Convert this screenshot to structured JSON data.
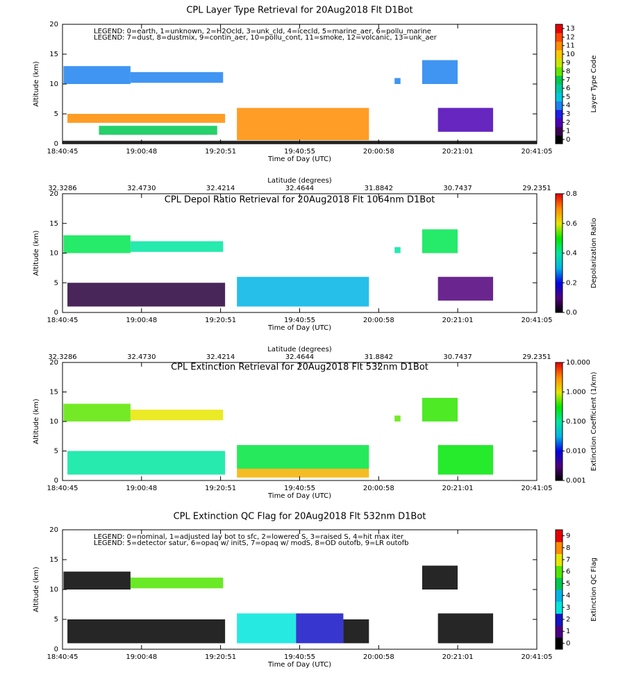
{
  "chart_data": [
    {
      "type": "curtain",
      "title": "CPL Layer Type Retrieval for 20Aug2018 Flt D1Bot",
      "xlabel": "Time of Day (UTC)",
      "ylabel": "Altitude (km)",
      "zlabel": "Layer Type Code",
      "legend_lines": [
        "LEGEND: 0=earth, 1=unknown, 2=H2Ocld, 3=unk_cld, 4=icecld, 5=marine_aer, 6=pollu_marine",
        "LEGEND: 7=dust, 8=dustmix, 9=contin_aer, 10=pollu_cont, 11=smoke, 12=volcanic, 13=unk_aer"
      ],
      "xlim": [
        "18:40:45",
        "20:41:05"
      ],
      "xticks": [
        "18:40:45",
        "19:00:48",
        "19:20:51",
        "19:40:55",
        "20:00:58",
        "20:21:01",
        "20:41:05"
      ],
      "ylim": [
        0,
        20
      ],
      "yticks": [
        0,
        5,
        10,
        15,
        20
      ],
      "zlim": [
        0,
        13
      ],
      "zticks": [
        0,
        1,
        2,
        3,
        4,
        5,
        6,
        7,
        8,
        9,
        10,
        11,
        12,
        13
      ],
      "discrete": true,
      "colors": [
        "#000000",
        "#3c0050",
        "#4b00b4",
        "#1e1ee6",
        "#1e82f0",
        "#00c8dc",
        "#00c8a0",
        "#00c850",
        "#64e600",
        "#c8e600",
        "#ffc800",
        "#ff8c00",
        "#ff4600",
        "#e60000"
      ],
      "layers": [
        {
          "start": "18:41:00",
          "end": "18:58:00",
          "bottom": 10,
          "top": 13,
          "value": 4
        },
        {
          "start": "18:58:00",
          "end": "19:21:30",
          "bottom": 10.2,
          "top": 12,
          "value": 4
        },
        {
          "start": "18:42:00",
          "end": "19:22:00",
          "bottom": 3.5,
          "top": 5,
          "value": 11
        },
        {
          "start": "18:50:00",
          "end": "19:20:00",
          "bottom": 1.5,
          "top": 3,
          "value": 7
        },
        {
          "start": "19:25:00",
          "end": "19:58:30",
          "bottom": 0.6,
          "top": 6,
          "value": 11
        },
        {
          "start": "20:05:00",
          "end": "20:06:30",
          "bottom": 10,
          "top": 11,
          "value": 4
        },
        {
          "start": "20:12:00",
          "end": "20:21:00",
          "bottom": 10,
          "top": 14,
          "value": 4
        },
        {
          "start": "20:16:00",
          "end": "20:30:00",
          "bottom": 2,
          "top": 6,
          "value": 2
        },
        {
          "start": "18:40:45",
          "end": "20:41:05",
          "bottom": 0,
          "top": 0.5,
          "value": 0
        }
      ]
    },
    {
      "type": "curtain",
      "title": "CPL Depol Ratio Retrieval for 20Aug2018 Flt 1064nm D1Bot",
      "xlabel": "Time of Day (UTC)",
      "ylabel": "Altitude (km)",
      "zlabel": "Depolarization Ratio",
      "x2label": "Latitude (degrees)",
      "x2ticks": [
        32.3286,
        {
          "value": 32.473,
          "label": "32.4730"
        },
        32.4214,
        32.4644,
        31.8842,
        30.7437,
        29.2351
      ],
      "xlim": [
        "18:40:45",
        "20:41:05"
      ],
      "xticks": [
        "18:40:45",
        "19:00:48",
        "19:20:51",
        "19:40:55",
        "20:00:58",
        "20:21:01",
        "20:41:05"
      ],
      "ylim": [
        0,
        20
      ],
      "yticks": [
        0,
        5,
        10,
        15,
        20
      ],
      "zlim": [
        0,
        0.8
      ],
      "zticks": [
        {
          "value": 0,
          "label": "0.0"
        },
        0.2,
        0.4,
        0.6,
        0.8
      ],
      "colors": [
        "#000000",
        "#50007a",
        "#0000e6",
        "#00b4e6",
        "#00e6a0",
        "#00e600",
        "#e6e600",
        "#ff8c00",
        "#e60000"
      ],
      "layers": [
        {
          "start": "18:41:00",
          "end": "18:58:00",
          "bottom": 10,
          "top": 13,
          "value": 0.45
        },
        {
          "start": "18:58:00",
          "end": "19:21:30",
          "bottom": 10.2,
          "top": 12,
          "value": 0.4
        },
        {
          "start": "18:42:00",
          "end": "19:22:00",
          "bottom": 1,
          "top": 5,
          "value": 0.05
        },
        {
          "start": "19:25:00",
          "end": "19:58:30",
          "bottom": 1,
          "top": 6,
          "value": 0.3
        },
        {
          "start": "20:05:00",
          "end": "20:06:30",
          "bottom": 10,
          "top": 11,
          "value": 0.4
        },
        {
          "start": "20:12:00",
          "end": "20:21:00",
          "bottom": 10,
          "top": 14,
          "value": 0.45
        },
        {
          "start": "20:16:00",
          "end": "20:30:00",
          "bottom": 2,
          "top": 6,
          "value": 0.1
        }
      ]
    },
    {
      "type": "curtain",
      "title": "CPL Extinction Retrieval for 20Aug2018 Flt 532nm D1Bot",
      "xlabel": "Time of Day (UTC)",
      "ylabel": "Altitude (km)",
      "zlabel": "Extinction Coefficient (1/km)",
      "x2label": "Latitude (degrees)",
      "x2ticks": [
        32.3286,
        {
          "value": 32.473,
          "label": "32.4730"
        },
        32.4214,
        32.4644,
        31.8842,
        30.7437,
        29.2351
      ],
      "xlim": [
        "18:40:45",
        "20:41:05"
      ],
      "xticks": [
        "18:40:45",
        "19:00:48",
        "19:20:51",
        "19:40:55",
        "20:00:58",
        "20:21:01",
        "20:41:05"
      ],
      "ylim": [
        0,
        20
      ],
      "yticks": [
        0,
        5,
        10,
        15,
        20
      ],
      "zlim": [
        0.001,
        10
      ],
      "zscale": "log",
      "zticks": [
        0.001,
        {
          "value": 0.01,
          "label": "0.010"
        },
        {
          "value": 0.1,
          "label": "0.100"
        },
        {
          "value": 1,
          "label": "1.000"
        },
        {
          "value": 10,
          "label": "10.000"
        }
      ],
      "colors": [
        "#000000",
        "#50007a",
        "#0000e6",
        "#00b4e6",
        "#00e6a0",
        "#00e600",
        "#e6e600",
        "#ff8c00",
        "#e60000"
      ],
      "layers": [
        {
          "start": "18:41:00",
          "end": "18:58:00",
          "bottom": 10,
          "top": 13,
          "value": 0.5
        },
        {
          "start": "18:58:00",
          "end": "19:21:30",
          "bottom": 10.2,
          "top": 12,
          "value": 1
        },
        {
          "start": "18:42:00",
          "end": "19:22:00",
          "bottom": 1,
          "top": 5,
          "value": 0.1
        },
        {
          "start": "19:25:00",
          "end": "19:58:30",
          "bottom": 2,
          "top": 6,
          "value": 0.2
        },
        {
          "start": "19:25:00",
          "end": "19:58:30",
          "bottom": 0.5,
          "top": 2,
          "value": 2
        },
        {
          "start": "20:05:00",
          "end": "20:06:30",
          "bottom": 10,
          "top": 11,
          "value": 0.5
        },
        {
          "start": "20:12:00",
          "end": "20:21:00",
          "bottom": 10,
          "top": 14,
          "value": 0.4
        },
        {
          "start": "20:16:00",
          "end": "20:30:00",
          "bottom": 1,
          "top": 6,
          "value": 0.3
        }
      ]
    },
    {
      "type": "curtain",
      "title": "CPL Extinction QC Flag for 20Aug2018 Flt 532nm D1Bot",
      "xlabel": "Time of Day (UTC)",
      "ylabel": "Altitude (km)",
      "zlabel": "Extinction QC Flag",
      "legend_lines": [
        "LEGEND: 0=nominal, 1=adjusted lay bot to sfc, 2=lowered S, 3=raised S, 4=hit max iter",
        "LEGEND: 5=detector satur, 6=opaq w/ initS, 7=opaq w/ modS, 8=OD outofb, 9=LR outofb"
      ],
      "xlim": [
        "18:40:45",
        "20:41:05"
      ],
      "xticks": [
        "18:40:45",
        "19:00:48",
        "19:20:51",
        "19:40:55",
        "20:00:58",
        "20:21:01",
        "20:41:05"
      ],
      "ylim": [
        0,
        20
      ],
      "yticks": [
        0,
        5,
        10,
        15,
        20
      ],
      "zlim": [
        0,
        9
      ],
      "zticks": [
        0,
        1,
        2,
        3,
        4,
        5,
        6,
        7,
        8,
        9
      ],
      "discrete": true,
      "colors": [
        "#000000",
        "#4b0082",
        "#1414c8",
        "#00e6dc",
        "#00b4e6",
        "#00c850",
        "#50e600",
        "#e6e600",
        "#ff8c00",
        "#e60000"
      ],
      "layers": [
        {
          "start": "18:41:00",
          "end": "18:58:00",
          "bottom": 10,
          "top": 13,
          "value": 0
        },
        {
          "start": "18:58:00",
          "end": "19:21:30",
          "bottom": 10.2,
          "top": 12,
          "value": 6
        },
        {
          "start": "18:42:00",
          "end": "19:22:00",
          "bottom": 1,
          "top": 5,
          "value": 0
        },
        {
          "start": "19:25:00",
          "end": "19:40:00",
          "bottom": 1,
          "top": 6,
          "value": 3
        },
        {
          "start": "19:40:00",
          "end": "19:52:00",
          "bottom": 1,
          "top": 6,
          "value": 2
        },
        {
          "start": "19:52:00",
          "end": "19:58:30",
          "bottom": 1,
          "top": 5,
          "value": 0
        },
        {
          "start": "20:12:00",
          "end": "20:21:00",
          "bottom": 10,
          "top": 14,
          "value": 0
        },
        {
          "start": "20:16:00",
          "end": "20:30:00",
          "bottom": 1,
          "top": 6,
          "value": 0
        }
      ]
    }
  ]
}
